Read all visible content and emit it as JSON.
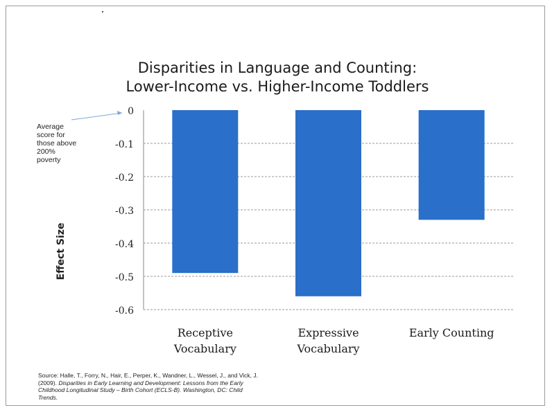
{
  "chart_data": {
    "type": "bar",
    "title_lines": [
      "Disparities in Language and Counting:",
      "Lower-Income vs. Higher-Income Toddlers"
    ],
    "categories": [
      [
        "Receptive",
        "Vocabulary"
      ],
      [
        "Expressive",
        "Vocabulary"
      ],
      [
        "Early Counting"
      ]
    ],
    "values": [
      -0.49,
      -0.56,
      -0.33
    ],
    "ylabel": "Effect Size",
    "ylim": [
      -0.6,
      0
    ],
    "yticks": [
      "0",
      "-0.1",
      "-0.2",
      "-0.3",
      "-0.4",
      "-0.5",
      "-0.6"
    ],
    "ytick_values": [
      0,
      -0.1,
      -0.2,
      -0.3,
      -0.4,
      -0.5,
      -0.6
    ],
    "grid": true,
    "bar_color": "#2a6fc9",
    "grid_color": "#9a9a9a",
    "annotation": {
      "lines": [
        "Average",
        "score for",
        "those above",
        "200%",
        "poverty"
      ],
      "arrow_color": "#7fa6d8"
    }
  },
  "source": {
    "line1": "Source: Halle, T., Forry, N., Hair, E., Perper, K., Wandner, L., Wessel, J., and Vick, J.",
    "line2_prefix": "(2009).",
    "line2_italic": "Disparities in Early Learning and Development:  Lessons from the Early",
    "line3_italic": "Childhood Longitudinal Study – Birth Cohort (ECLS-B).",
    "line3_suffix": " Washington, DC: Child",
    "line4_italic": "Trends."
  }
}
